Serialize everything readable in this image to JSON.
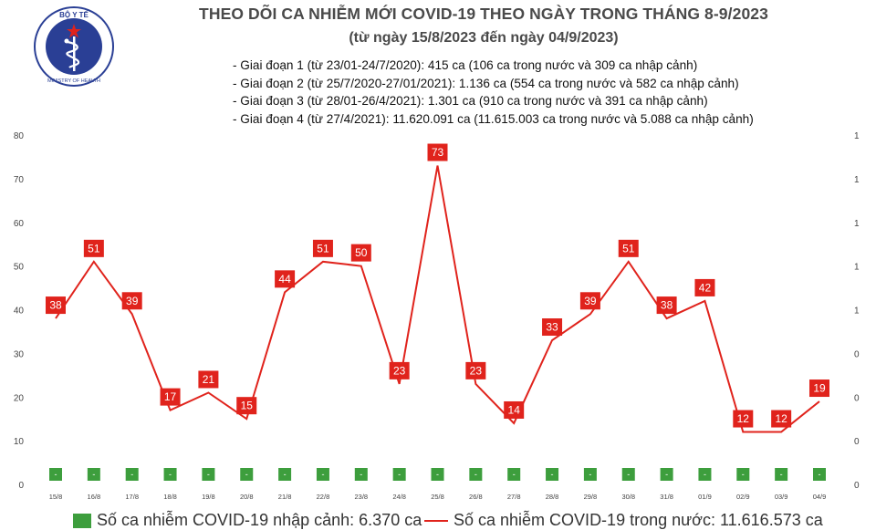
{
  "header": {
    "logo_text_top": "BỘ Y TẾ",
    "logo_text_bottom": "MINISTRY OF HEALTH",
    "title": "THEO DÕI CA NHIỄM MỚI COVID-19 THEO NGÀY TRONG THÁNG 8-9/2023",
    "subtitle": "(từ ngày 15/8/2023 đến ngày 04/9/2023)"
  },
  "notes": [
    "- Giai đoạn 1 (từ 23/01-24/7/2020): 415 ca (106 ca trong nước và 309 ca nhập cảnh)",
    "- Giai đoạn 2 (từ 25/7/2020-27/01/2021): 1.136 ca (554 ca trong nước và 582 ca nhập cảnh)",
    "- Giai đoạn 3 (từ 28/01-26/4/2021): 1.301 ca (910 ca trong nước và 391 ca nhập cảnh)",
    "- Giai đoạn 4 (từ 27/4/2021): 11.620.091 ca (11.615.003 ca trong nước và 5.088 ca nhập cảnh)"
  ],
  "chart_data": {
    "type": "bar+line",
    "categories": [
      "15/8",
      "16/8",
      "17/8",
      "18/8",
      "19/8",
      "20/8",
      "21/8",
      "22/8",
      "23/8",
      "24/8",
      "25/8",
      "26/8",
      "27/8",
      "28/8",
      "29/8",
      "30/8",
      "31/8",
      "01/9",
      "02/9",
      "03/9",
      "04/9"
    ],
    "series": [
      {
        "name": "Số ca nhiễm COVID-19 nhập cảnh: 6.370 ca",
        "type": "bar",
        "axis": "right",
        "color": "#3d9e3d",
        "labels": [
          "-",
          "-",
          "-",
          "-",
          "-",
          "-",
          "-",
          "-",
          "-",
          "-",
          "-",
          "-",
          "-",
          "-",
          "-",
          "-",
          "-",
          "-",
          "-",
          "-",
          "-"
        ]
      },
      {
        "name": "Số ca nhiễm COVID-19 trong nước: 11.616.573 ca",
        "type": "line",
        "axis": "left",
        "color": "#e0231c",
        "values": [
          38,
          51,
          39,
          17,
          21,
          15,
          44,
          51,
          50,
          23,
          73,
          23,
          14,
          33,
          39,
          51,
          38,
          42,
          12,
          12,
          19
        ]
      }
    ],
    "y_left": {
      "range": [
        0,
        80
      ],
      "ticks": [
        "0",
        "10",
        "20",
        "30",
        "40",
        "50",
        "60",
        "70",
        "80"
      ]
    },
    "y_right": {
      "ticks": [
        "0",
        "0",
        "0",
        "0",
        "1",
        "1",
        "1",
        "1",
        "1"
      ]
    },
    "grid": false,
    "legend_position": "bottom"
  }
}
